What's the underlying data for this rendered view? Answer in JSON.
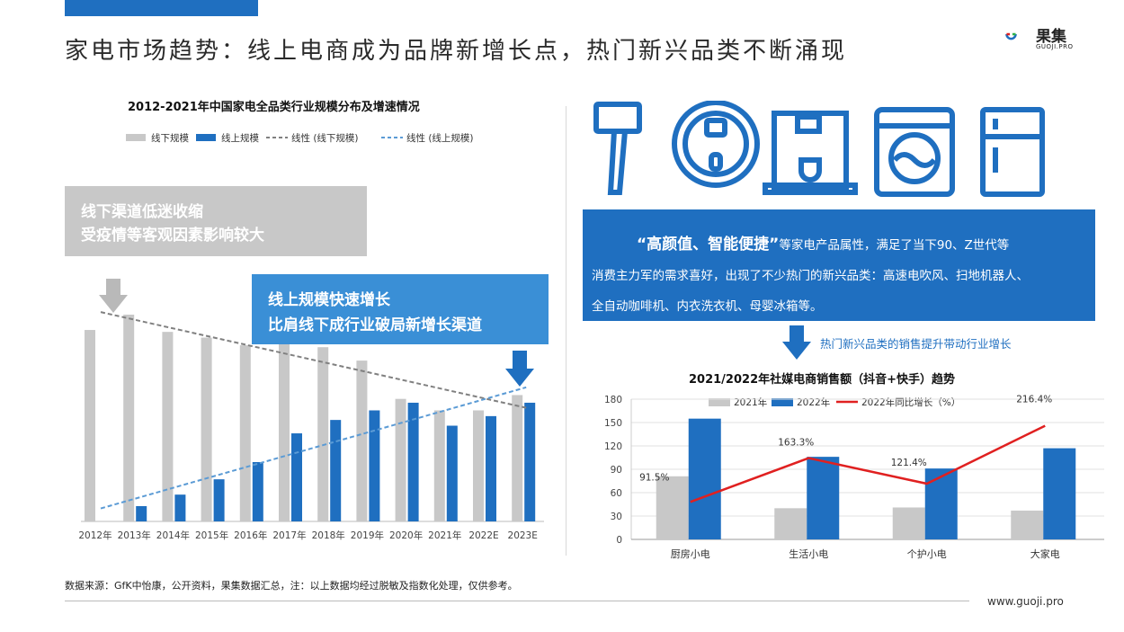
{
  "page": {
    "title": "家电市场趋势：线上电商成为品牌新增长点，热门新兴品类不断涌现",
    "logo_text": "果集",
    "logo_sub": "GUOJI.PRO",
    "source": "数据来源：GfK中怡康，公开资料，果集数据汇总，注：以上数据均经过脱敏及指数化处理，仅供参考。",
    "site": "www.guoji.pro",
    "colors": {
      "blue": "#1f6fc0",
      "grey": "#c8c8c8",
      "red": "#e02020",
      "lightblue": "#3a8fd6"
    }
  },
  "left": {
    "callout_grey": {
      "line1": "线下渠道低迷收缩",
      "line2": "受疫情等客观因素影响较大"
    },
    "callout_blue": {
      "line1": "线上规模快速增长",
      "line2": "比肩线下成行业破局新增长渠道"
    }
  },
  "right": {
    "icons": [
      "hair-dryer-icon",
      "robot-vacuum-icon",
      "coffee-machine-icon",
      "washing-machine-icon",
      "fridge-icon"
    ],
    "box": {
      "emph": "“高颜值、智能便捷”",
      "line1_rest": "等家电产品属性，满足了当下90、Z世代等",
      "line2": "消费主力军的需求喜好，出现了不少热门的新兴品类：高速电吹风、扫地机器人、",
      "line3": "全自动咖啡机、内衣洗衣机、母婴冰箱等。"
    },
    "annotation": "热门新兴品类的销售提升带动行业增长"
  },
  "chart_data": [
    {
      "type": "bar",
      "title": "2012-2021年中国家电全品类行业规模分布及增速情况",
      "categories": [
        "2012年",
        "2013年",
        "2014年",
        "2015年",
        "2016年",
        "2017年",
        "2018年",
        "2019年",
        "2020年",
        "2021年",
        "2022E",
        "2023E"
      ],
      "series": [
        {
          "name": "线下规模",
          "values": [
            100,
            108,
            99,
            96,
            92,
            96,
            91,
            84,
            64,
            58,
            58,
            66
          ]
        },
        {
          "name": "线上规模",
          "values": [
            0,
            8,
            14,
            22,
            31,
            46,
            53,
            58,
            62,
            50,
            55,
            62
          ]
        }
      ],
      "trendlines": [
        {
          "name": "线性 (线下规模)",
          "style": "dashed",
          "color": "#808080"
        },
        {
          "name": "线性 (线上规模)",
          "style": "dashed",
          "color": "#5b9bd5"
        }
      ],
      "legend": "top",
      "grid": false
    },
    {
      "type": "bar",
      "title": "2021/2022年社媒电商销售额（抖音+快手）趋势",
      "categories": [
        "厨房小电",
        "生活小电",
        "个护小电",
        "大家电"
      ],
      "series": [
        {
          "name": "2021年",
          "values": [
            81,
            40,
            41,
            37
          ]
        },
        {
          "name": "2022年",
          "values": [
            155,
            106,
            91,
            117
          ]
        },
        {
          "name": "2022年同比增长（%）",
          "type": "line",
          "values": [
            91.5,
            163.3,
            121.4,
            216.4
          ],
          "labels": [
            "91.5%",
            "163.3%",
            "121.4%",
            "216.4%"
          ]
        }
      ],
      "y_ticks": [
        "0",
        "30",
        "60",
        "90",
        "120",
        "150",
        "180"
      ],
      "ylim": [
        0,
        180
      ],
      "legend": "top",
      "grid": true
    }
  ]
}
